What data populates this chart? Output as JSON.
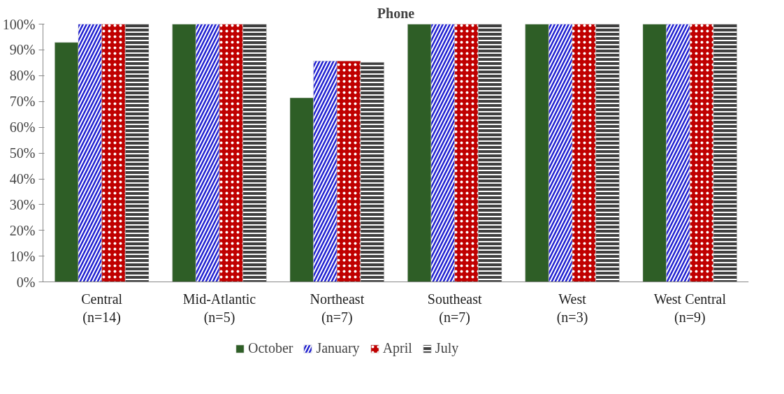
{
  "chart_data": {
    "type": "bar",
    "title": "Phone",
    "categories": [
      "Central\n(n=14)",
      "Mid-Atlantic\n(n=5)",
      "Northeast\n(n=7)",
      "Southeast\n(n=7)",
      "West\n(n=3)",
      "West Central\n(n=9)"
    ],
    "series": [
      {
        "name": "October",
        "color": "#2e5e26",
        "values": [
          92.9,
          100,
          71.4,
          100,
          100,
          100
        ]
      },
      {
        "name": "January",
        "color": "#1f1fd0",
        "values": [
          100,
          100,
          85.7,
          100,
          100,
          100
        ]
      },
      {
        "name": "April",
        "color": "#c00000",
        "values": [
          100,
          100,
          85.7,
          100,
          100,
          100
        ]
      },
      {
        "name": "July",
        "color": "#404040",
        "values": [
          100,
          100,
          85.2,
          100,
          100,
          100
        ]
      }
    ],
    "ylim": [
      0,
      100
    ],
    "yticks": [
      {
        "value": 0,
        "label": "0%"
      },
      {
        "value": 10,
        "label": "10%"
      },
      {
        "value": 20,
        "label": "20%"
      },
      {
        "value": 30,
        "label": "30%"
      },
      {
        "value": 40,
        "label": "40%"
      },
      {
        "value": 50,
        "label": "50%"
      },
      {
        "value": 60,
        "label": "60%"
      },
      {
        "value": 70,
        "label": "70%"
      },
      {
        "value": 80,
        "label": "80%"
      },
      {
        "value": 90,
        "label": "90%"
      },
      {
        "value": 100,
        "label": "100%"
      }
    ],
    "grid": false,
    "legend": "bottom"
  }
}
